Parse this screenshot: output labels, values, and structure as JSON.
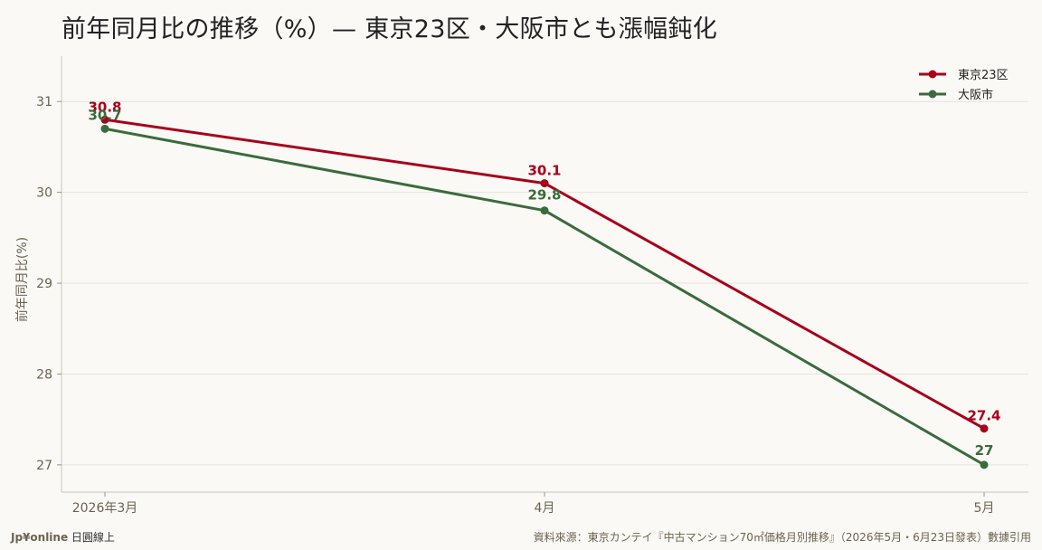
{
  "title": "前年同月比の推移（%）— 東京23区・大阪市とも漲幅鈍化",
  "footer": {
    "brand": "Jp¥online",
    "brand_suffix": " 日圓線上",
    "source": "資料來源：東京カンテイ『中古マンション70㎡価格月別推移』（2026年5月・6月23日發表）數據引用"
  },
  "chart_data": {
    "type": "line",
    "x": [
      "2026年3月",
      "4月",
      "5月"
    ],
    "ylabel": "前年同月比(%)",
    "xlabel": "",
    "ylim": [
      26.7,
      31.5
    ],
    "yticks": [
      27,
      28,
      29,
      30,
      31
    ],
    "grid": true,
    "legend_position": "top-right",
    "series": [
      {
        "name": "東京23区",
        "values": [
          30.8,
          30.1,
          27.4
        ],
        "labels": [
          "30.8",
          "30.1",
          "27.4"
        ],
        "color": "#a8001a"
      },
      {
        "name": "大阪市",
        "values": [
          30.7,
          29.8,
          27.0
        ],
        "labels": [
          "30.7",
          "29.8",
          "27"
        ],
        "color": "#3a6b3c"
      }
    ]
  }
}
